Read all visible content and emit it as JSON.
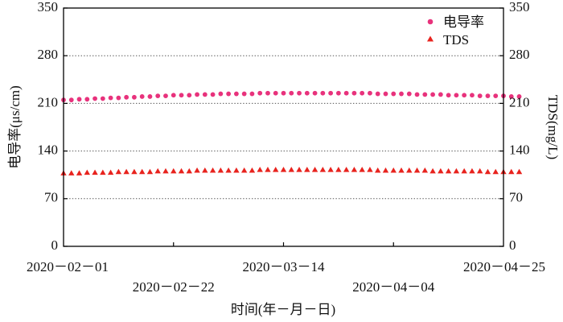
{
  "chart_data": {
    "type": "scatter",
    "xlabel": "时间(年－月－日)",
    "ylabel_left": "电导率(μs/cm)",
    "ylabel_right": "TDS(mg/L)",
    "ylim_left": [
      0,
      350
    ],
    "ylim_right": [
      0,
      350
    ],
    "yticks_left": [
      "0",
      "70",
      "140",
      "210",
      "280",
      "350"
    ],
    "yticks_right": [
      "0",
      "70",
      "140",
      "210",
      "280",
      "350"
    ],
    "xlim": [
      "2020-02-01",
      "2020-04-25"
    ],
    "xticks_top_row": [
      "2020－02－01",
      "2020－03－14",
      "2020－04－25"
    ],
    "xticks_bottom_row": [
      "2020－02－22",
      "2020－04－04"
    ],
    "grid": "horizontal dotted",
    "legend_position": "top-right",
    "series": [
      {
        "name": "电导率",
        "axis": "left",
        "marker": "circle",
        "color": "#e8327c",
        "start": "2020-02-01",
        "x_step_days": 1.5,
        "values": [
          215,
          215,
          216,
          216,
          217,
          217,
          218,
          218,
          219,
          219,
          220,
          220,
          221,
          221,
          222,
          222,
          222,
          223,
          223,
          223,
          224,
          224,
          224,
          224,
          224,
          225,
          225,
          225,
          225,
          225,
          225,
          225,
          225,
          225,
          225,
          225,
          225,
          225,
          225,
          225,
          224,
          224,
          224,
          224,
          224,
          223,
          223,
          223,
          223,
          222,
          222,
          222,
          222,
          221,
          221,
          221,
          221,
          220,
          220
        ]
      },
      {
        "name": "TDS",
        "axis": "right",
        "marker": "triangle",
        "color": "#e8231e",
        "start": "2020-02-01",
        "x_step_days": 1.5,
        "values": [
          108,
          108,
          108,
          109,
          109,
          109,
          109,
          110,
          110,
          110,
          110,
          110,
          111,
          111,
          111,
          111,
          111,
          112,
          112,
          112,
          112,
          112,
          112,
          112,
          112,
          113,
          113,
          113,
          113,
          113,
          113,
          113,
          113,
          113,
          113,
          113,
          113,
          113,
          113,
          113,
          112,
          112,
          112,
          112,
          112,
          112,
          112,
          111,
          111,
          111,
          111,
          111,
          111,
          111,
          110,
          110,
          110,
          110,
          110
        ]
      }
    ]
  }
}
